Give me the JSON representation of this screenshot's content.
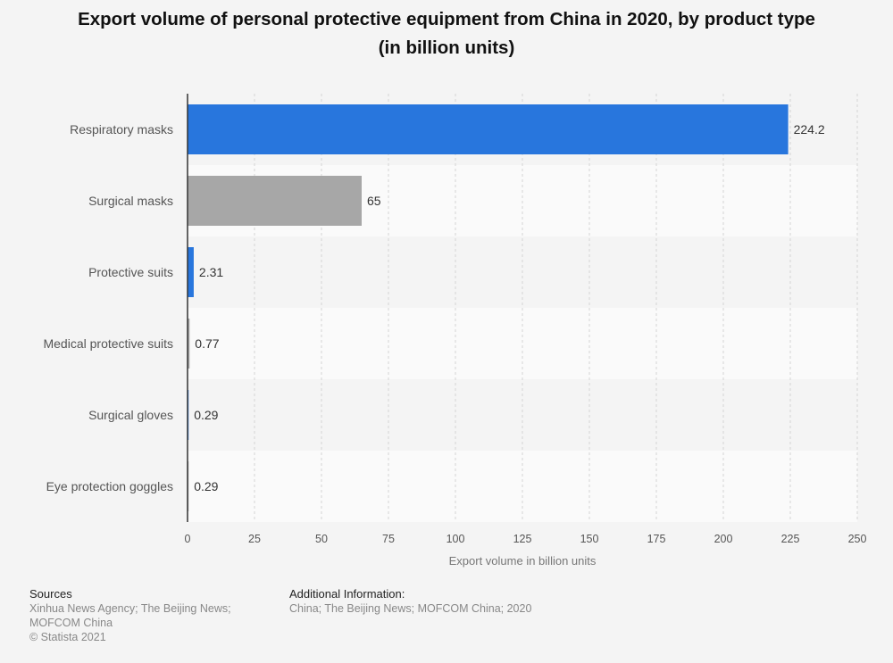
{
  "chart_data": {
    "type": "bar",
    "orientation": "horizontal",
    "title_line1": "Export volume of personal protective equipment from China in 2020, by product type",
    "title_line2": "(in billion units)",
    "categories": [
      "Respiratory masks",
      "Surgical masks",
      "Protective suits",
      "Medical protective suits",
      "Surgical gloves",
      "Eye protection goggles"
    ],
    "values": [
      224.2,
      65,
      2.31,
      0.77,
      0.29,
      0.29
    ],
    "value_labels": [
      "224.2",
      "65",
      "2.31",
      "0.77",
      "0.29",
      "0.29"
    ],
    "xlabel": "Export volume in billion units",
    "ylabel": "",
    "xlim": [
      0,
      250
    ],
    "xticks": [
      0,
      25,
      50,
      75,
      100,
      125,
      150,
      175,
      200,
      225,
      250
    ],
    "grid": true,
    "colors": {
      "primary": "#2876dd",
      "secondary": "#a7a7a7",
      "bar_colors": [
        "#2876dd",
        "#a7a7a7",
        "#2876dd",
        "#a7a7a7",
        "#2876dd",
        "#a7a7a7"
      ]
    }
  },
  "footer": {
    "sources_header": "Sources",
    "sources_line1": "Xinhua News Agency; The Beijing News;",
    "sources_line2": "MOFCOM China",
    "copyright": "© Statista 2021",
    "additional_header": "Additional Information:",
    "additional_text": "China; The Beijing News; MOFCOM China; 2020"
  }
}
